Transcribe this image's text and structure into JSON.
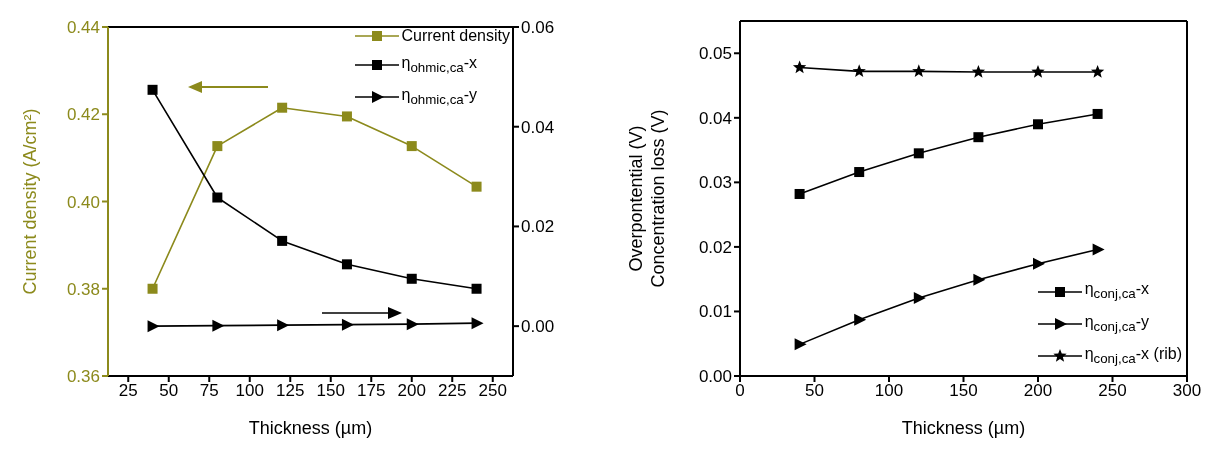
{
  "chart_data": [
    {
      "type": "line",
      "x": [
        40,
        80,
        120,
        160,
        200,
        240
      ],
      "xlabel": "Thickness (µm)",
      "ylabel": "Current density (A/cm²)",
      "xlim": [
        12.5,
        262.5
      ],
      "xticks": [
        25,
        50,
        75,
        100,
        125,
        150,
        175,
        200,
        225,
        250
      ],
      "ylim": [
        0.36,
        0.44
      ],
      "yticks": [
        0.36,
        0.38,
        {
          "value": 0.4,
          "label": "0.40"
        },
        0.42,
        0.44
      ],
      "y2lim": [
        -0.01,
        0.06
      ],
      "y2ticks": [
        {
          "value": 0,
          "label": "0.00"
        },
        0.02,
        0.04,
        0.06
      ],
      "legend": "top right",
      "series": [
        {
          "name": "Current density",
          "color": "#8c8a1c",
          "marker": "square",
          "values": [
            0.38,
            0.4127,
            0.4215,
            0.4195,
            0.4127,
            0.4034
          ]
        },
        {
          "name": "η$_{ohmic,ca}$-x",
          "color": "#000000",
          "marker": "square",
          "axis": "y2",
          "values": [
            0.0474,
            0.0258,
            0.0171,
            0.0124,
            0.0095,
            0.0075
          ]
        },
        {
          "name": "η$_{ohmic,ca}$-y",
          "color": "#000000",
          "marker": "triangle",
          "axis": "y2",
          "values": [
            0,
            0.0001,
            0.0002,
            0.0003,
            0.0004,
            0.0006
          ]
        }
      ]
    },
    {
      "type": "line",
      "x": [
        40,
        80,
        120,
        160,
        200,
        240
      ],
      "xlabel": "Thickness (µm)",
      "ylabel": "Overpontential (V)\nConcentration loss (V)",
      "xlim": [
        0,
        300
      ],
      "xticks": [
        0,
        50,
        100,
        150,
        200,
        250,
        300
      ],
      "ylim": [
        0,
        0.055
      ],
      "yticks": [
        {
          "value": 0,
          "label": "0.00"
        },
        0.01,
        0.02,
        0.03,
        0.04,
        0.05
      ],
      "legend": "bottom right",
      "series": [
        {
          "name": "η$_{conj,ca}$-x",
          "color": "#000000",
          "marker": "square",
          "values": [
            0.0282,
            0.0316,
            0.0345,
            0.037,
            0.039,
            0.0406
          ]
        },
        {
          "name": "η$_{conj,ca}$-y",
          "color": "#000000",
          "marker": "triangle",
          "values": [
            0.0049,
            0.0087,
            0.0121,
            0.0149,
            0.0174,
            0.0196
          ]
        },
        {
          "name": "η$_{conj,ca}$-x (rib)",
          "color": "#000000",
          "marker": "star",
          "values": [
            0.0478,
            0.0472,
            0.0472,
            0.0471,
            0.0471,
            0.0471
          ]
        }
      ]
    }
  ]
}
